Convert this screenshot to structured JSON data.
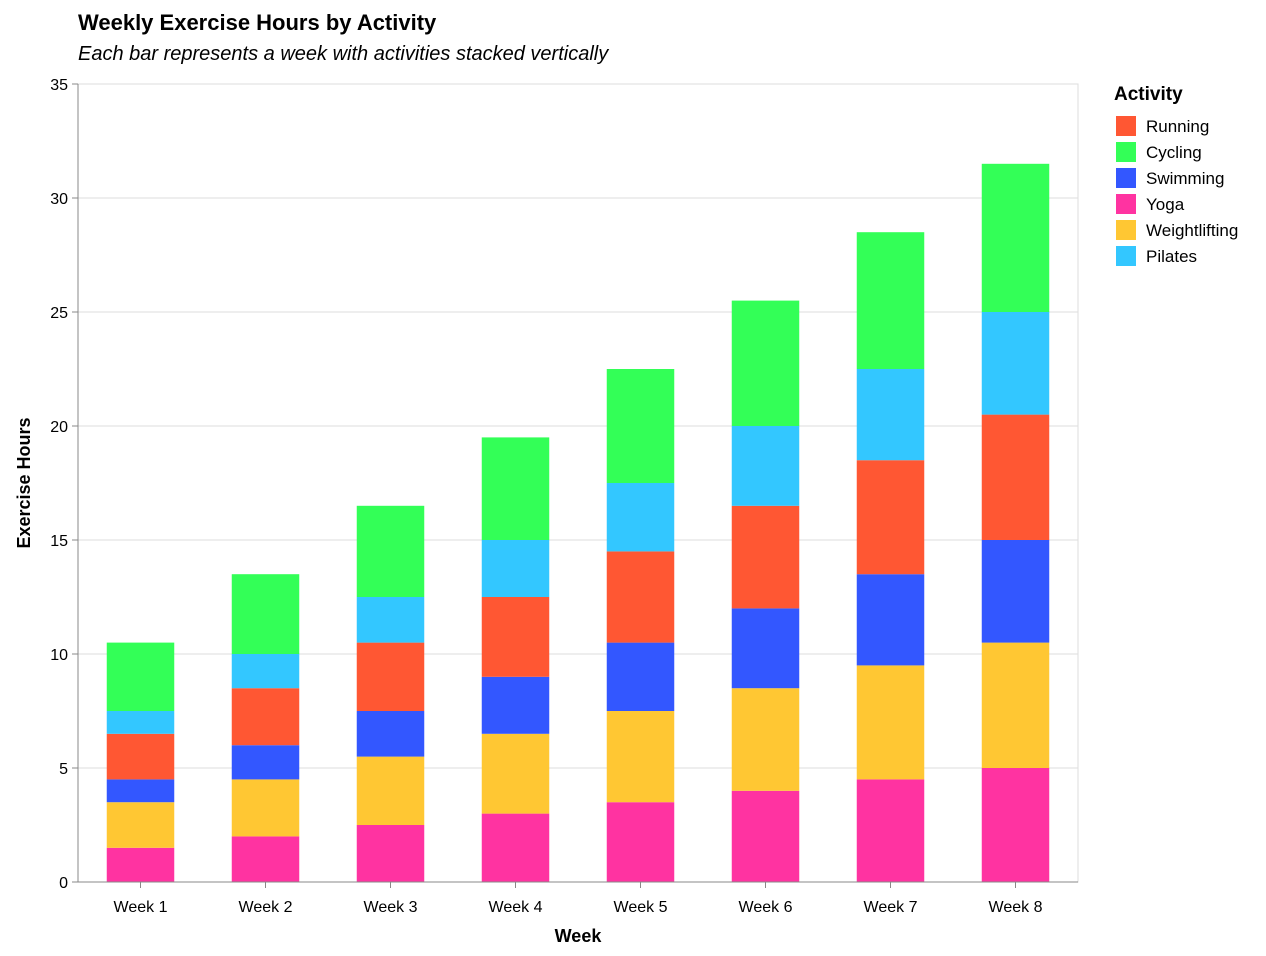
{
  "chart_data": {
    "type": "bar",
    "stacked": true,
    "title": "Weekly Exercise Hours by Activity",
    "subtitle": "Each bar represents a week with activities stacked vertically",
    "xlabel": "Week",
    "ylabel": "Exercise Hours",
    "ylim": [
      0,
      35
    ],
    "yticks": [
      0,
      5,
      10,
      15,
      20,
      25,
      30,
      35
    ],
    "grid": true,
    "legend_title": "Activity",
    "legend_position": "right",
    "categories": [
      "Week 1",
      "Week 2",
      "Week 3",
      "Week 4",
      "Week 5",
      "Week 6",
      "Week 7",
      "Week 8"
    ],
    "stack_order": [
      "Yoga",
      "Weightlifting",
      "Swimming",
      "Running",
      "Pilates",
      "Cycling"
    ],
    "series": [
      {
        "name": "Running",
        "color": "#ff5733",
        "values": [
          2,
          2.5,
          3,
          3.5,
          4,
          4.5,
          5,
          5.5
        ]
      },
      {
        "name": "Cycling",
        "color": "#33ff57",
        "values": [
          3,
          3.5,
          4,
          4.5,
          5,
          5.5,
          6,
          6.5
        ]
      },
      {
        "name": "Swimming",
        "color": "#3357ff",
        "values": [
          1,
          1.5,
          2,
          2.5,
          3,
          3.5,
          4,
          4.5
        ]
      },
      {
        "name": "Yoga",
        "color": "#ff33a1",
        "values": [
          1.5,
          2,
          2.5,
          3,
          3.5,
          4,
          4.5,
          5
        ]
      },
      {
        "name": "Weightlifting",
        "color": "#ffc733",
        "values": [
          2,
          2.5,
          3,
          3.5,
          4,
          4.5,
          5,
          5.5
        ]
      },
      {
        "name": "Pilates",
        "color": "#33c7ff",
        "values": [
          1,
          1.5,
          2,
          2.5,
          3,
          3.5,
          4,
          4.5
        ]
      }
    ]
  }
}
